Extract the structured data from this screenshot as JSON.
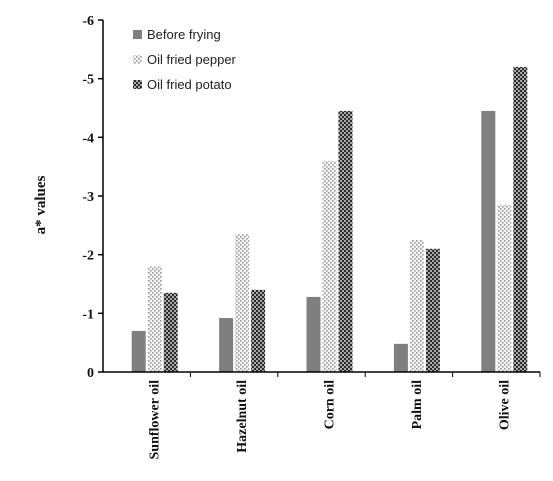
{
  "chart_data": {
    "type": "bar",
    "categories": [
      "Sunflower oil",
      "Hazelnut oil",
      "Corn oil",
      "Palm oil",
      "Olive oil"
    ],
    "series": [
      {
        "name": "Before frying",
        "values": [
          -0.7,
          -0.92,
          -1.28,
          -0.48,
          -4.45
        ],
        "color": "#7f7f7f",
        "pattern": "solid"
      },
      {
        "name": "Oil fried pepper",
        "values": [
          -1.8,
          -2.35,
          -3.6,
          -2.25,
          -2.85
        ],
        "color": "#d9d9d9",
        "pattern": "light-dots"
      },
      {
        "name": "Oil fried potato",
        "values": [
          -1.35,
          -1.4,
          -4.45,
          -2.1,
          -5.2
        ],
        "color": "#595959",
        "pattern": "dark-checker"
      }
    ],
    "title": "",
    "xlabel": "",
    "ylabel": "a* values",
    "ylim": [
      0,
      -6
    ],
    "yticks": [
      "-6",
      "-5",
      "-4",
      "-3",
      "-2",
      "-1",
      "0"
    ],
    "legend": "top-left",
    "grid": false
  }
}
